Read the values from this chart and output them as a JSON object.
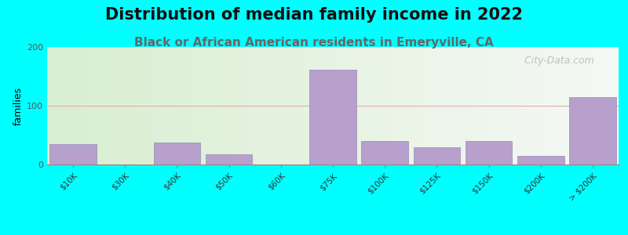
{
  "title": "Distribution of median family income in 2022",
  "subtitle": "Black or African American residents in Emeryville, CA",
  "ylabel": "families",
  "background_outer": "#00FFFF",
  "bar_color": "#b8a0cc",
  "bar_edge_color": "#9888bb",
  "categories": [
    "$10K",
    "$30K",
    "$40K",
    "$50K",
    "$60K",
    "$75K",
    "$100K",
    "$125K",
    "$150K",
    "$200K",
    "> $200K"
  ],
  "values": [
    35,
    0,
    38,
    18,
    0,
    162,
    40,
    30,
    40,
    15,
    115
  ],
  "ylim": [
    0,
    200
  ],
  "yticks": [
    0,
    100,
    200
  ],
  "grid_color": "#ddaaaa",
  "title_fontsize": 15,
  "subtitle_fontsize": 11,
  "subtitle_color": "#666666",
  "watermark": " City-Data.com",
  "watermark_color": "#aaaaaa"
}
